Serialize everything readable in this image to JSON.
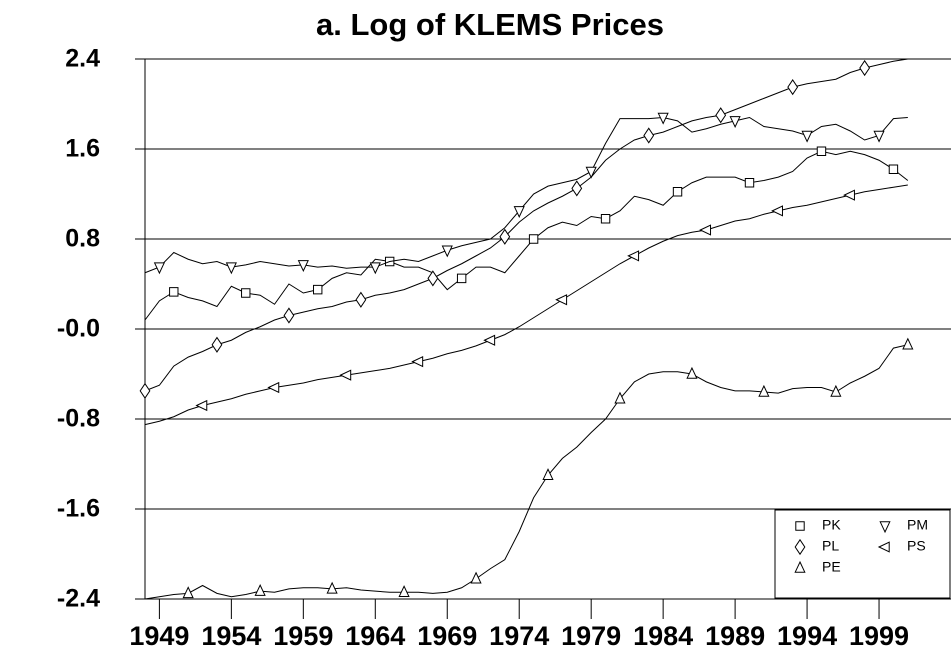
{
  "chart_data": {
    "type": "line",
    "title": "a. Log of KLEMS Prices",
    "x": [
      1948,
      1949,
      1950,
      1951,
      1952,
      1953,
      1954,
      1955,
      1956,
      1957,
      1958,
      1959,
      1960,
      1961,
      1962,
      1963,
      1964,
      1965,
      1966,
      1967,
      1968,
      1969,
      1970,
      1971,
      1972,
      1973,
      1974,
      1975,
      1976,
      1977,
      1978,
      1979,
      1980,
      1981,
      1982,
      1983,
      1984,
      1985,
      1986,
      1987,
      1988,
      1989,
      1990,
      1991,
      1992,
      1993,
      1994,
      1995,
      1996,
      1997,
      1998,
      1999,
      2000,
      2001
    ],
    "xlim": [
      1948,
      2004
    ],
    "xticks": [
      1949,
      1954,
      1959,
      1964,
      1969,
      1974,
      1979,
      1984,
      1989,
      1994,
      1999
    ],
    "ylim": [
      -2.4,
      2.4
    ],
    "yticks": [
      -2.4,
      -1.6,
      -0.8,
      {
        "value": 0,
        "label": "-0.0"
      },
      0.8,
      1.6,
      2.4
    ],
    "legend": "lower right",
    "series": [
      {
        "name": "PK",
        "color": "#000000",
        "marker": "square",
        "values": [
          0.08,
          0.25,
          0.33,
          0.28,
          0.25,
          0.2,
          0.38,
          0.32,
          0.3,
          0.22,
          0.4,
          0.32,
          0.35,
          0.45,
          0.5,
          0.48,
          0.62,
          0.6,
          0.55,
          0.55,
          0.5,
          0.35,
          0.45,
          0.55,
          0.55,
          0.5,
          0.65,
          0.8,
          0.9,
          0.95,
          0.92,
          1.0,
          0.98,
          1.05,
          1.18,
          1.15,
          1.1,
          1.22,
          1.3,
          1.35,
          1.35,
          1.35,
          1.3,
          1.32,
          1.35,
          1.4,
          1.52,
          1.58,
          1.55,
          1.58,
          1.55,
          1.5,
          1.42,
          1.32
        ]
      },
      {
        "name": "PM",
        "color": "#000000",
        "marker": "triangle-down",
        "values": [
          0.5,
          0.55,
          0.68,
          0.62,
          0.58,
          0.6,
          0.55,
          0.57,
          0.6,
          0.58,
          0.56,
          0.57,
          0.55,
          0.56,
          0.54,
          0.55,
          0.55,
          0.6,
          0.62,
          0.6,
          0.65,
          0.7,
          0.74,
          0.77,
          0.8,
          0.9,
          1.05,
          1.2,
          1.27,
          1.3,
          1.33,
          1.4,
          1.65,
          1.87,
          1.87,
          1.87,
          1.88,
          1.85,
          1.75,
          1.78,
          1.82,
          1.85,
          1.88,
          1.8,
          1.78,
          1.76,
          1.72,
          1.8,
          1.82,
          1.76,
          1.68,
          1.72,
          1.87,
          1.88
        ]
      },
      {
        "name": "PL",
        "color": "#000000",
        "marker": "diamond",
        "values": [
          -0.55,
          -0.5,
          -0.33,
          -0.25,
          -0.2,
          -0.14,
          -0.1,
          -0.03,
          0.02,
          0.08,
          0.12,
          0.15,
          0.18,
          0.2,
          0.24,
          0.26,
          0.3,
          0.32,
          0.35,
          0.4,
          0.45,
          0.52,
          0.58,
          0.65,
          0.72,
          0.82,
          0.95,
          1.05,
          1.12,
          1.18,
          1.25,
          1.35,
          1.5,
          1.6,
          1.68,
          1.72,
          1.75,
          1.8,
          1.85,
          1.88,
          1.9,
          1.95,
          2.0,
          2.05,
          2.1,
          2.15,
          2.18,
          2.2,
          2.22,
          2.28,
          2.32,
          2.35,
          2.38,
          2.4
        ]
      },
      {
        "name": "PS",
        "color": "#000000",
        "marker": "triangle-left",
        "values": [
          -0.85,
          -0.82,
          -0.78,
          -0.72,
          -0.68,
          -0.65,
          -0.62,
          -0.58,
          -0.55,
          -0.52,
          -0.5,
          -0.48,
          -0.45,
          -0.43,
          -0.41,
          -0.39,
          -0.37,
          -0.35,
          -0.32,
          -0.29,
          -0.26,
          -0.22,
          -0.19,
          -0.15,
          -0.1,
          -0.05,
          0.02,
          0.1,
          0.18,
          0.26,
          0.34,
          0.42,
          0.5,
          0.58,
          0.65,
          0.72,
          0.78,
          0.83,
          0.86,
          0.88,
          0.92,
          0.96,
          0.98,
          1.02,
          1.05,
          1.08,
          1.1,
          1.13,
          1.16,
          1.19,
          1.22,
          1.24,
          1.26,
          1.28
        ]
      },
      {
        "name": "PE",
        "color": "#000000",
        "marker": "triangle-up",
        "values": [
          -2.4,
          -2.38,
          -2.36,
          -2.35,
          -2.28,
          -2.35,
          -2.38,
          -2.36,
          -2.33,
          -2.34,
          -2.31,
          -2.3,
          -2.3,
          -2.31,
          -2.3,
          -2.32,
          -2.33,
          -2.34,
          -2.34,
          -2.34,
          -2.35,
          -2.34,
          -2.3,
          -2.22,
          -2.13,
          -2.05,
          -1.8,
          -1.5,
          -1.3,
          -1.15,
          -1.05,
          -0.92,
          -0.8,
          -0.62,
          -0.47,
          -0.4,
          -0.38,
          -0.38,
          -0.4,
          -0.47,
          -0.52,
          -0.55,
          -0.55,
          -0.56,
          -0.57,
          -0.53,
          -0.52,
          -0.52,
          -0.56,
          -0.48,
          -0.42,
          -0.35,
          -0.17,
          -0.14
        ]
      }
    ]
  }
}
